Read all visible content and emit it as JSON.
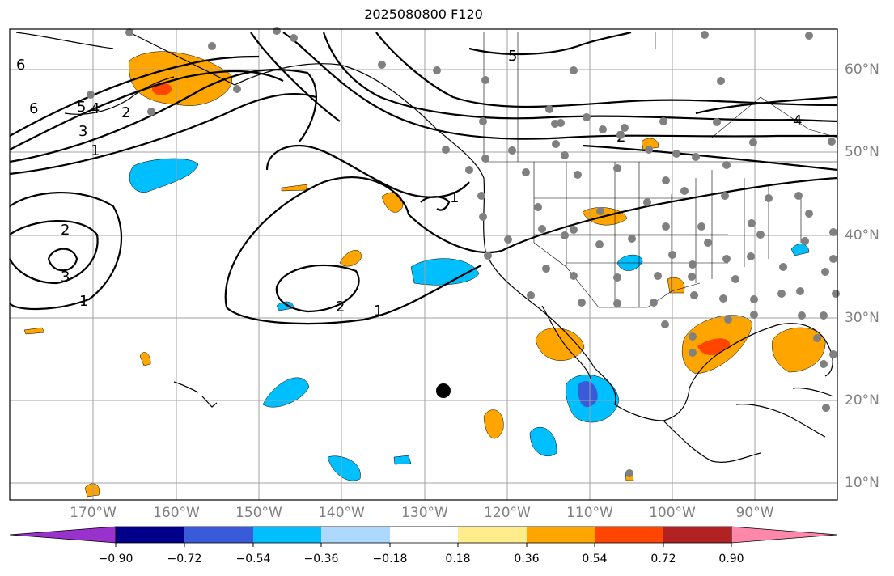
{
  "title": "2025080800 F120",
  "lon_labels": [
    "170°W",
    "160°W",
    "150°W",
    "140°W",
    "130°W",
    "120°W",
    "110°W",
    "100°W",
    "90°W"
  ],
  "lat_labels": [
    "60°N",
    "50°N",
    "40°N",
    "30°N",
    "20°N",
    "10°N"
  ],
  "colorbar": {
    "ticks": [
      "−0.90",
      "−0.72",
      "−0.54",
      "−0.36",
      "−0.18",
      "0.18",
      "0.36",
      "0.54",
      "0.72",
      "0.90"
    ],
    "colors": [
      "#9932cc",
      "#00008b",
      "#3a5bd9",
      "#00bfff",
      "#add8ff",
      "#ffffff",
      "#ffec8b",
      "#ffa500",
      "#ff4500",
      "#b22222",
      "#ff88aa"
    ]
  },
  "contour_labels": [
    "6",
    "5",
    "4",
    "3",
    "2",
    "1",
    "2",
    "3",
    "1",
    "2",
    "1",
    "5",
    "2",
    "4",
    "1"
  ],
  "colors": {
    "land_outline": "#000000",
    "grid": "#a0a0a0",
    "station": "#808080"
  }
}
